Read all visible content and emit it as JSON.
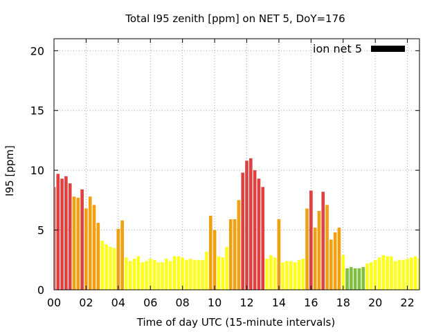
{
  "chart_data": {
    "type": "bar",
    "title": "Total I95 zenith [ppm] on NET 5, DoY=176",
    "xlabel": "Time of day UTC (15-minute intervals)",
    "ylabel": "I95 [ppm]",
    "xlim": [
      0,
      22.75
    ],
    "ylim": [
      0,
      21
    ],
    "x_ticks": [
      "00",
      "02",
      "04",
      "06",
      "08",
      "10",
      "12",
      "14",
      "16",
      "18",
      "20",
      "22"
    ],
    "y_ticks": [
      "0",
      "5",
      "10",
      "15",
      "20"
    ],
    "grid": true,
    "legend_position": "top-right",
    "bar_width_hours": 0.2,
    "colors": {
      "red": "#e04040",
      "orange": "#f0a010",
      "yellow": "#ffff20",
      "green": "#80c040",
      "legend_swatch": "#000000"
    },
    "series": [
      {
        "name": "ion net 5",
        "x": [
          0.0,
          0.25,
          0.5,
          0.75,
          1.0,
          1.25,
          1.5,
          1.75,
          2.0,
          2.25,
          2.5,
          2.75,
          3.0,
          3.25,
          3.5,
          3.75,
          4.0,
          4.25,
          4.5,
          4.75,
          5.0,
          5.25,
          5.5,
          5.75,
          6.0,
          6.25,
          6.5,
          6.75,
          7.0,
          7.25,
          7.5,
          7.75,
          8.0,
          8.25,
          8.5,
          8.75,
          9.0,
          9.25,
          9.5,
          9.75,
          10.0,
          10.25,
          10.5,
          10.75,
          11.0,
          11.25,
          11.5,
          11.75,
          12.0,
          12.25,
          12.5,
          12.75,
          13.0,
          13.25,
          13.5,
          13.75,
          14.0,
          14.25,
          14.5,
          14.75,
          15.0,
          15.25,
          15.5,
          15.75,
          16.0,
          16.25,
          16.5,
          16.75,
          17.0,
          17.25,
          17.5,
          17.75,
          18.0,
          18.25,
          18.5,
          18.75,
          19.0,
          19.25,
          19.5,
          19.75,
          20.0,
          20.25,
          20.5,
          20.75,
          21.0,
          21.25,
          21.5,
          21.75,
          22.0,
          22.25,
          22.5,
          22.75
        ],
        "values": [
          8.6,
          9.7,
          9.3,
          9.5,
          8.9,
          7.8,
          7.7,
          8.4,
          6.8,
          7.8,
          7.1,
          5.6,
          4.1,
          3.8,
          3.6,
          3.5,
          5.1,
          5.8,
          2.7,
          2.4,
          2.6,
          2.8,
          2.3,
          2.4,
          2.6,
          2.5,
          2.3,
          2.3,
          2.6,
          2.4,
          2.8,
          2.8,
          2.7,
          2.5,
          2.6,
          2.5,
          2.5,
          2.5,
          3.2,
          6.2,
          5.0,
          2.8,
          2.7,
          3.6,
          5.9,
          5.9,
          7.5,
          9.8,
          10.8,
          11.0,
          10.0,
          9.3,
          8.6,
          2.6,
          2.9,
          2.7,
          5.9,
          2.3,
          2.4,
          2.4,
          2.3,
          2.5,
          2.6,
          6.8,
          8.3,
          5.2,
          6.6,
          8.2,
          7.1,
          4.2,
          4.8,
          5.2,
          2.9,
          1.8,
          1.9,
          1.8,
          1.8,
          1.9,
          2.2,
          2.3,
          2.5,
          2.7,
          2.9,
          2.8,
          2.8,
          2.4,
          2.5,
          2.5,
          2.6,
          2.7,
          2.8,
          2.6
        ],
        "bar_colors": [
          "red",
          "red",
          "red",
          "red",
          "red",
          "orange",
          "orange",
          "red",
          "orange",
          "orange",
          "orange",
          "orange",
          "yellow",
          "yellow",
          "yellow",
          "yellow",
          "orange",
          "orange",
          "yellow",
          "yellow",
          "yellow",
          "yellow",
          "yellow",
          "yellow",
          "yellow",
          "yellow",
          "yellow",
          "yellow",
          "yellow",
          "yellow",
          "yellow",
          "yellow",
          "yellow",
          "yellow",
          "yellow",
          "yellow",
          "yellow",
          "yellow",
          "yellow",
          "orange",
          "orange",
          "yellow",
          "yellow",
          "yellow",
          "orange",
          "orange",
          "orange",
          "red",
          "red",
          "red",
          "red",
          "red",
          "red",
          "yellow",
          "yellow",
          "yellow",
          "orange",
          "yellow",
          "yellow",
          "yellow",
          "yellow",
          "yellow",
          "yellow",
          "orange",
          "red",
          "orange",
          "orange",
          "red",
          "orange",
          "orange",
          "orange",
          "orange",
          "yellow",
          "green",
          "green",
          "green",
          "green",
          "green",
          "yellow",
          "yellow",
          "yellow",
          "yellow",
          "yellow",
          "yellow",
          "yellow",
          "yellow",
          "yellow",
          "yellow",
          "yellow",
          "yellow",
          "yellow",
          "yellow"
        ]
      }
    ]
  }
}
